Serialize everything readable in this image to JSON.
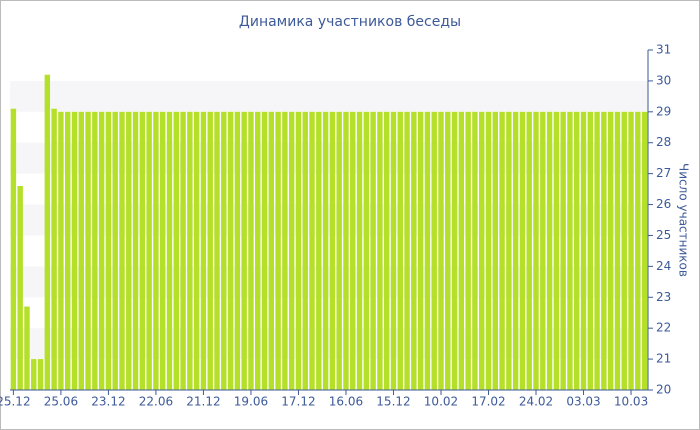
{
  "chart_data": {
    "type": "bar",
    "title": "Динамика участников беседы",
    "y_label": "Число участников",
    "categories": [
      "25.12",
      null,
      null,
      null,
      null,
      null,
      null,
      "25.06",
      null,
      null,
      null,
      null,
      null,
      null,
      "23.12",
      null,
      null,
      null,
      null,
      null,
      null,
      "22.06",
      null,
      null,
      null,
      null,
      null,
      null,
      "21.12",
      null,
      null,
      null,
      null,
      null,
      null,
      "19.06",
      null,
      null,
      null,
      null,
      null,
      null,
      "17.12",
      null,
      null,
      null,
      null,
      null,
      null,
      "16.06",
      null,
      null,
      null,
      null,
      null,
      null,
      "15.12",
      null,
      null,
      null,
      null,
      null,
      null,
      "10.02",
      null,
      null,
      null,
      null,
      null,
      null,
      "17.02",
      null,
      null,
      null,
      null,
      null,
      null,
      "24.02",
      null,
      null,
      null,
      null,
      null,
      null,
      "03.03",
      null,
      null,
      null,
      null,
      null,
      null,
      "10.03",
      null,
      null
    ],
    "values": [
      29.1,
      26.6,
      22.7,
      21,
      21,
      30.2,
      29.1,
      29,
      29,
      29,
      29,
      29,
      29,
      29,
      29,
      29,
      29,
      29,
      29,
      29,
      29,
      29,
      29,
      29,
      29,
      29,
      29,
      29,
      29,
      29,
      29,
      29,
      29,
      29,
      29,
      29,
      29,
      29,
      29,
      29,
      29,
      29,
      29,
      29,
      29,
      29,
      29,
      29,
      29,
      29,
      29,
      29,
      29,
      29,
      29,
      29,
      29,
      29,
      29,
      29,
      29,
      29,
      29,
      29,
      29,
      29,
      29,
      29,
      29,
      29,
      29,
      29,
      29,
      29,
      29,
      29,
      29,
      29,
      29,
      29,
      29,
      29,
      29,
      29,
      29,
      29,
      29,
      29,
      29,
      29,
      29,
      29,
      29,
      29
    ],
    "color": "#b5e02a",
    "ylim": [
      20,
      31
    ],
    "yticks": [
      20,
      21,
      22,
      23,
      24,
      25,
      26,
      27,
      28,
      29,
      30,
      31
    ],
    "y_axis_side": "right",
    "grid_bands": true
  }
}
